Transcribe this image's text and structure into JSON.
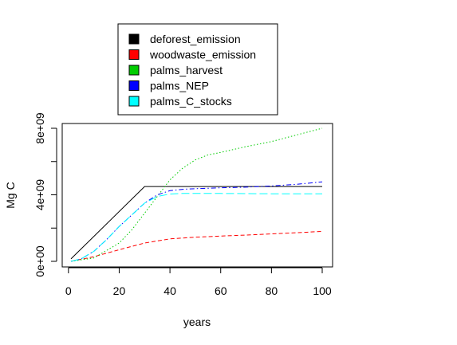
{
  "chart_data": {
    "type": "line",
    "title": "",
    "xlabel": "years",
    "ylabel": "Mg C",
    "xlim": [
      0,
      100
    ],
    "ylim": [
      0,
      8000000000
    ],
    "x_ticks": [
      0,
      20,
      40,
      60,
      80,
      100
    ],
    "x_tick_labels": [
      "0",
      "20",
      "40",
      "60",
      "80",
      "100"
    ],
    "y_ticks": [
      0,
      4000000000,
      8000000000
    ],
    "y_tick_labels": [
      "0e+00",
      "4e+09",
      "8e+09"
    ],
    "y_minor_ticks": [
      2000000000,
      6000000000
    ],
    "grid": false,
    "legend_position": "top",
    "series": [
      {
        "name": "deforest_emission",
        "color": "#000000",
        "dash": "solid",
        "x": [
          1,
          30,
          100
        ],
        "y": [
          150000000,
          4500000000,
          4500000000
        ]
      },
      {
        "name": "woodwaste_emission",
        "color": "#ff0000",
        "dash": "dashed",
        "x": [
          1,
          10,
          20,
          30,
          40,
          50,
          60,
          70,
          80,
          90,
          100
        ],
        "y": [
          0,
          280000000,
          700000000,
          1100000000,
          1350000000,
          1450000000,
          1520000000,
          1580000000,
          1650000000,
          1720000000,
          1800000000
        ]
      },
      {
        "name": "palms_harvest",
        "color": "#00cc00",
        "dash": "dotted",
        "x": [
          1,
          10,
          20,
          25,
          30,
          35,
          40,
          45,
          50,
          55,
          60,
          70,
          80,
          90,
          100
        ],
        "y": [
          0,
          200000000,
          1100000000,
          1900000000,
          2900000000,
          3900000000,
          4900000000,
          5600000000,
          6100000000,
          6400000000,
          6550000000,
          6900000000,
          7200000000,
          7600000000,
          8000000000
        ]
      },
      {
        "name": "palms_NEP",
        "color": "#0000ff",
        "dash": "dashdot",
        "x": [
          1,
          5,
          10,
          15,
          20,
          25,
          30,
          35,
          40,
          45,
          50,
          60,
          70,
          80,
          90,
          100
        ],
        "y": [
          0,
          150000000,
          600000000,
          1300000000,
          2100000000,
          2800000000,
          3500000000,
          4000000000,
          4250000000,
          4330000000,
          4370000000,
          4420000000,
          4460000000,
          4530000000,
          4630000000,
          4780000000
        ]
      },
      {
        "name": "palms_C_stocks",
        "color": "#00ffff",
        "dash": "longdash",
        "x": [
          1,
          5,
          10,
          15,
          20,
          25,
          30,
          35,
          40,
          45,
          50,
          60,
          70,
          80,
          90,
          100
        ],
        "y": [
          0,
          150000000,
          600000000,
          1300000000,
          2100000000,
          2800000000,
          3500000000,
          3900000000,
          4050000000,
          4080000000,
          4080000000,
          4080000000,
          4070000000,
          4060000000,
          4060000000,
          4060000000
        ]
      }
    ]
  }
}
